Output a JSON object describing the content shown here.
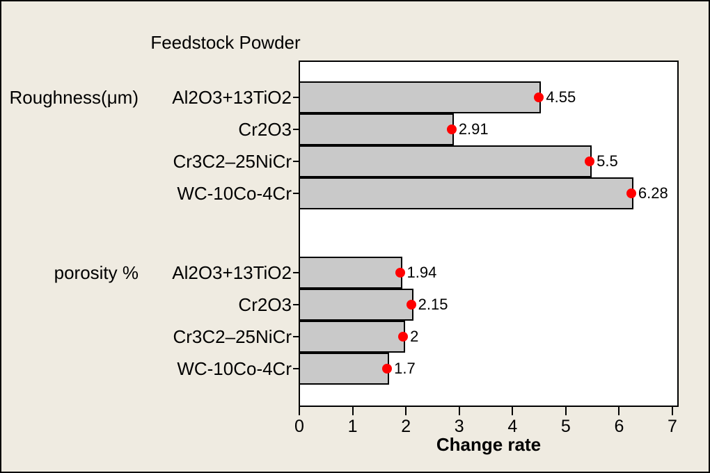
{
  "chart_data": {
    "type": "bar",
    "orientation": "horizontal",
    "title": "Feedstock Powder",
    "xlabel": "Change rate",
    "xlim": [
      0,
      7
    ],
    "xticks": [
      "0",
      "1",
      "2",
      "3",
      "4",
      "5",
      "6",
      "7"
    ],
    "grid": false,
    "legend": "none",
    "categories": [
      "Al2O3+13TiO2",
      "Cr2O3",
      "Cr3C2–25NiCr",
      "WC-10Co-4Cr"
    ],
    "series": [
      {
        "name": "Roughness(μm)",
        "values": [
          4.55,
          2.91,
          5.5,
          6.28
        ],
        "value_labels": [
          "4.55",
          "2.91",
          "5.5",
          "6.28"
        ]
      },
      {
        "name": "porosity %",
        "values": [
          1.94,
          2.15,
          2,
          1.7
        ],
        "value_labels": [
          "1.94",
          "2.15",
          "2",
          "1.7"
        ]
      }
    ],
    "marker": "red-dot-at-bar-end",
    "colors": {
      "figure_background": "#EFEBE1",
      "plot_background": "#FFFFFF",
      "bar_fill": "#C9C9C9",
      "bar_border": "#000000",
      "marker_fill": "#FF0000",
      "text": "#000000",
      "border": "#000000"
    }
  }
}
